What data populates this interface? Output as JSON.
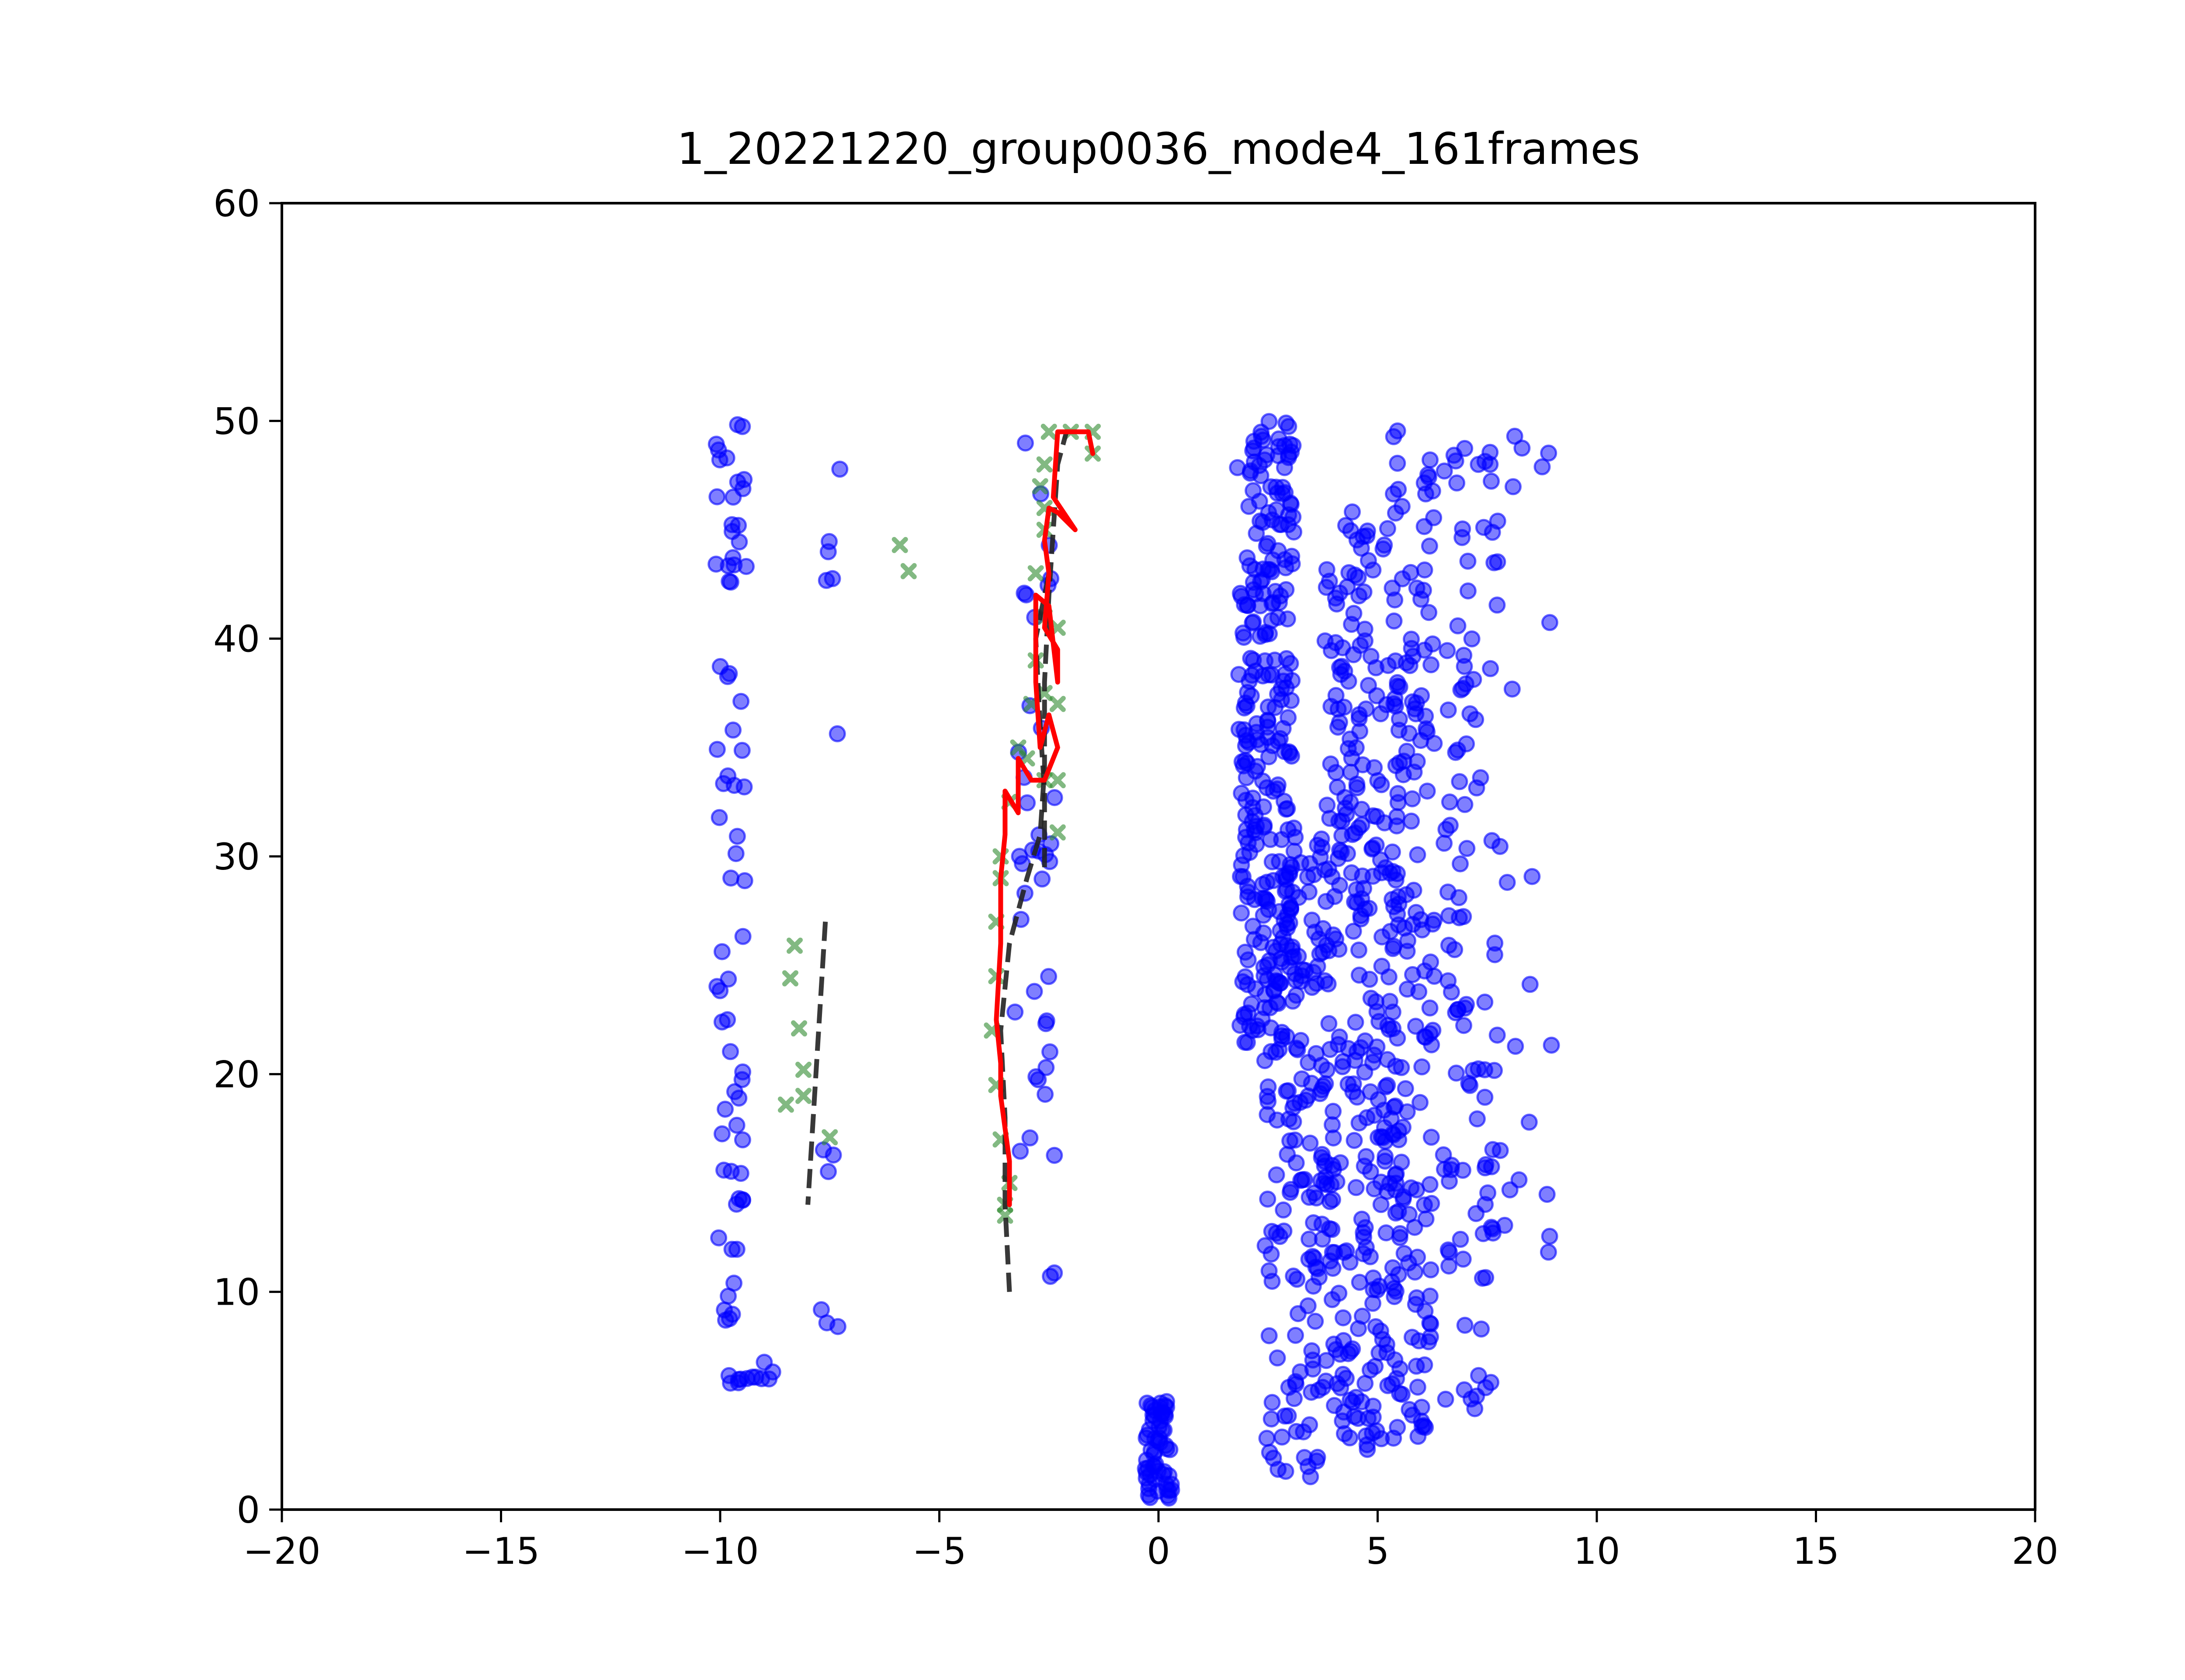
{
  "chart_data": {
    "type": "scatter",
    "title": "1_20221220_group0036_mode4_161frames",
    "xlabel": "",
    "ylabel": "",
    "xlim": [
      -20,
      20
    ],
    "ylim": [
      0,
      60
    ],
    "xticks": [
      -20,
      -15,
      -10,
      -5,
      0,
      5,
      10,
      15,
      20
    ],
    "yticks": [
      0,
      10,
      20,
      30,
      40,
      50,
      60
    ],
    "xtick_labels": [
      "−20",
      "−15",
      "−10",
      "−5",
      "0",
      "5",
      "10",
      "15",
      "20"
    ],
    "ytick_labels": [
      "0",
      "10",
      "20",
      "30",
      "40",
      "50",
      "60"
    ],
    "grid": false,
    "colors": {
      "points": "#0000ff",
      "crosses": "#2e8b2e",
      "path": "#ff0000",
      "dashed": "#222222"
    },
    "series": [
      {
        "kind": "points",
        "clusters": [
          {
            "xmin": -10.1,
            "xmax": -9.4,
            "ymin": 5.9,
            "ymax": 50,
            "n": 70
          },
          {
            "xmin": -9.9,
            "xmax": -8.8,
            "ymin": 5.8,
            "ymax": 6.9,
            "n": 12
          },
          {
            "xmin": -7.8,
            "xmax": -7.2,
            "ymin": 6.5,
            "ymax": 49,
            "n": 12
          },
          {
            "xmin": -3.3,
            "xmax": -2.3,
            "ymin": 10,
            "ymax": 49,
            "n": 40
          },
          {
            "xmin": -0.3,
            "xmax": 0.3,
            "ymin": 0.5,
            "ymax": 5,
            "n": 60
          },
          {
            "xmin": 1.8,
            "xmax": 3.1,
            "ymin": 21,
            "ymax": 50,
            "n": 260
          },
          {
            "xmin": 2.4,
            "xmax": 3.8,
            "ymin": 1.5,
            "ymax": 31,
            "n": 160
          },
          {
            "xmin": 3.8,
            "xmax": 5.5,
            "ymin": 2.5,
            "ymax": 46,
            "n": 300
          },
          {
            "xmin": 5.3,
            "xmax": 6.3,
            "ymin": 3.2,
            "ymax": 50,
            "n": 150
          },
          {
            "xmin": 6.5,
            "xmax": 7.8,
            "ymin": 4.5,
            "ymax": 50,
            "n": 110
          },
          {
            "xmin": 7.6,
            "xmax": 9.0,
            "ymin": 10,
            "ymax": 49.5,
            "n": 20
          }
        ]
      },
      {
        "kind": "crosses",
        "points": [
          [
            -5.9,
            44.3
          ],
          [
            -5.7,
            43.1
          ],
          [
            -8.3,
            25.9
          ],
          [
            -8.4,
            24.4
          ],
          [
            -8.2,
            22.1
          ],
          [
            -8.1,
            20.2
          ],
          [
            -8.1,
            19.0
          ],
          [
            -8.5,
            18.6
          ],
          [
            -7.5,
            17.1
          ],
          [
            -3.5,
            14.0
          ],
          [
            -3.5,
            13.5
          ],
          [
            -3.4,
            15.0
          ],
          [
            -3.6,
            17.0
          ],
          [
            -3.7,
            19.5
          ],
          [
            -3.8,
            22.0
          ],
          [
            -3.7,
            24.5
          ],
          [
            -3.7,
            27.0
          ],
          [
            -3.6,
            29.0
          ],
          [
            -3.6,
            30.0
          ],
          [
            -3.4,
            32.5
          ],
          [
            -3.2,
            35.0
          ],
          [
            -3.0,
            34.5
          ],
          [
            -2.6,
            33.5
          ],
          [
            -2.3,
            33.5
          ],
          [
            -2.3,
            31.1
          ],
          [
            -2.9,
            37.0
          ],
          [
            -2.6,
            37.5
          ],
          [
            -2.3,
            37.0
          ],
          [
            -2.8,
            39.0
          ],
          [
            -2.6,
            41.0
          ],
          [
            -2.3,
            40.5
          ],
          [
            -2.8,
            43.0
          ],
          [
            -2.6,
            45.0
          ],
          [
            -2.7,
            47.0
          ],
          [
            -2.6,
            48.0
          ],
          [
            -2.5,
            49.5
          ],
          [
            -2.0,
            49.5
          ],
          [
            -1.5,
            49.5
          ],
          [
            -1.5,
            48.5
          ],
          [
            -2.6,
            46.0
          ]
        ]
      },
      {
        "kind": "red-path",
        "points": [
          [
            -3.4,
            14
          ],
          [
            -3.4,
            16
          ],
          [
            -3.6,
            19
          ],
          [
            -3.6,
            20.5
          ],
          [
            -3.7,
            22.5
          ],
          [
            -3.6,
            26
          ],
          [
            -3.6,
            29
          ],
          [
            -3.5,
            31
          ],
          [
            -3.5,
            33
          ],
          [
            -3.2,
            32
          ],
          [
            -3.2,
            34.5
          ],
          [
            -2.9,
            33.5
          ],
          [
            -2.6,
            33.5
          ],
          [
            -2.3,
            35
          ],
          [
            -2.5,
            36.5
          ],
          [
            -2.7,
            35
          ],
          [
            -2.8,
            38
          ],
          [
            -2.8,
            42
          ],
          [
            -2.5,
            41.5
          ],
          [
            -2.3,
            38
          ],
          [
            -2.3,
            39.5
          ],
          [
            -2.6,
            40.5
          ],
          [
            -2.5,
            43
          ],
          [
            -2.6,
            44.5
          ],
          [
            -2.5,
            46
          ],
          [
            -2.3,
            45.8
          ],
          [
            -1.9,
            45
          ],
          [
            -2.4,
            46.5
          ],
          [
            -2.3,
            49.5
          ],
          [
            -1.6,
            49.5
          ],
          [
            -1.5,
            48.5
          ]
        ]
      },
      {
        "kind": "dashed-line",
        "points": [
          [
            -7.6,
            27
          ],
          [
            -8.0,
            14
          ]
        ]
      },
      {
        "kind": "dashed-line",
        "points": [
          [
            -3.4,
            10
          ],
          [
            -3.5,
            14
          ],
          [
            -3.5,
            18
          ],
          [
            -3.6,
            22
          ],
          [
            -3.4,
            26
          ],
          [
            -3.0,
            29
          ],
          [
            -2.7,
            31
          ],
          [
            -2.6,
            34
          ],
          [
            -2.6,
            38
          ],
          [
            -2.5,
            42
          ],
          [
            -2.4,
            45
          ],
          [
            -2.3,
            48
          ],
          [
            -2.1,
            49.5
          ]
        ]
      },
      {
        "kind": "dashed-line",
        "points": [
          [
            -2.6,
            29.5
          ],
          [
            -2.6,
            33
          ],
          [
            -2.7,
            36
          ],
          [
            -2.8,
            40
          ],
          [
            -2.5,
            43
          ]
        ]
      }
    ]
  }
}
